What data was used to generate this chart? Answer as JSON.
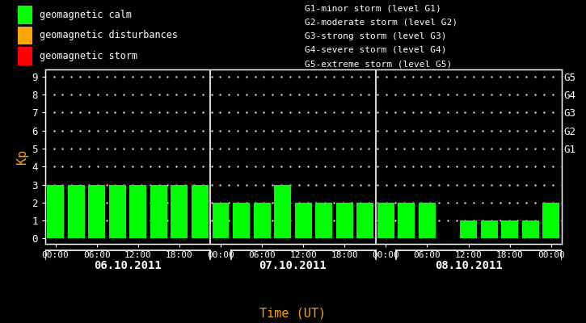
{
  "bg_color": "#000000",
  "bar_color": "#00ff00",
  "axis_color": "#ffffff",
  "orange_color": "#ffa500",
  "bar_values": [
    3,
    3,
    3,
    3,
    3,
    3,
    3,
    3,
    2,
    2,
    2,
    3,
    2,
    2,
    2,
    2,
    2,
    2,
    2,
    0,
    1,
    1,
    1,
    1,
    2
  ],
  "day_labels": [
    "06.10.2011",
    "07.10.2011",
    "08.10.2011"
  ],
  "xlabel": "Time (UT)",
  "ylabel": "Kp",
  "ylim": [
    0,
    9
  ],
  "yticks": [
    0,
    1,
    2,
    3,
    4,
    5,
    6,
    7,
    8,
    9
  ],
  "right_labels": [
    "G1",
    "G2",
    "G3",
    "G4",
    "G5"
  ],
  "right_label_yvals": [
    5,
    6,
    7,
    8,
    9
  ],
  "legend_items": [
    {
      "label": "geomagnetic calm",
      "color": "#00ff00"
    },
    {
      "label": "geomagnetic disturbances",
      "color": "#ffa500"
    },
    {
      "label": "geomagnetic storm",
      "color": "#ff0000"
    }
  ],
  "storm_legend": [
    "G1-minor storm (level G1)",
    "G2-moderate storm (level G2)",
    "G3-strong storm (level G3)",
    "G4-severe storm (level G4)",
    "G5-extreme storm (level G5)"
  ],
  "time_ticks": [
    "00:00",
    "06:00",
    "12:00",
    "18:00",
    "00:00",
    "06:00",
    "12:00",
    "18:00",
    "00:00",
    "06:00",
    "12:00",
    "18:00",
    "00:00"
  ],
  "vline_positions": [
    8,
    16
  ],
  "day_centers": [
    3.5,
    11.5,
    20.0
  ],
  "font_size_axis": 9,
  "font_size_legend": 8,
  "font_size_ylabel": 11,
  "font_size_day": 10,
  "font_size_time_ticks": 8
}
